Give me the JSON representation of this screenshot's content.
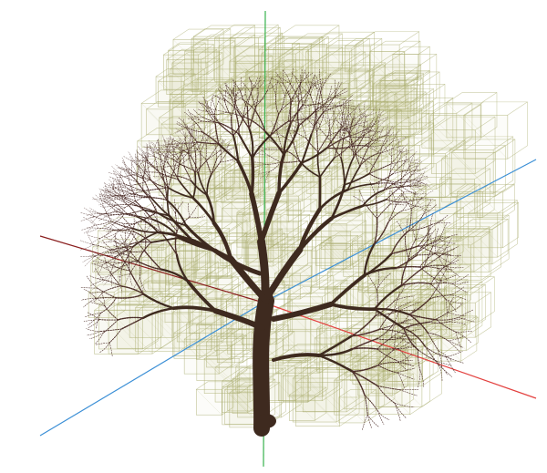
{
  "scene": {
    "background_color": "#ffffff",
    "voxel_color": "#a8ab6c",
    "voxel_fill_color": "#c9c38d",
    "trunk_color": "#3e2a1f",
    "twig_color": "#4d2f2a",
    "axis_x_color": "#e3413f",
    "axis_y_color": "#37b24d",
    "axis_z_color": "#3b8fd6",
    "axis_dark_color": "#8a1f1f"
  }
}
